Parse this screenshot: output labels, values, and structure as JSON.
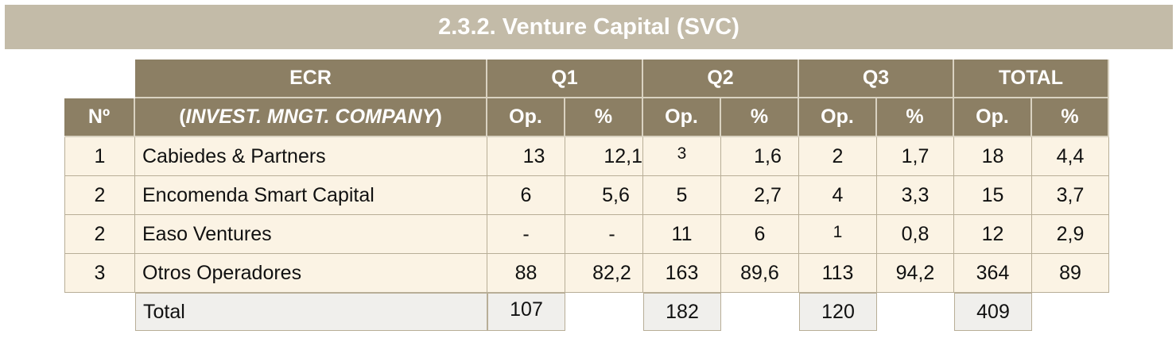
{
  "title": "2.3.2. Venture Capital (SVC)",
  "header": {
    "ecr": "ECR",
    "q1": "Q1",
    "q2": "Q2",
    "q3": "Q3",
    "total": "TOTAL",
    "no": "Nº",
    "company_open": "(",
    "company": "INVEST. MNGT. COMPANY",
    "company_close": ")",
    "op": "Op.",
    "pct": "%"
  },
  "rows": [
    {
      "no": "1",
      "name": "Cabiedes & Partners",
      "q1_op": "13",
      "q1_pct": "12,1",
      "q2_op": "3",
      "q2_pct": "1,6",
      "q3_op": "2",
      "q3_pct": "1,7",
      "t_op": "18",
      "t_pct": "4,4"
    },
    {
      "no": "2",
      "name": "Encomenda Smart Capital",
      "q1_op": "6",
      "q1_pct": "5,6",
      "q2_op": "5",
      "q2_pct": "2,7",
      "q3_op": "4",
      "q3_pct": "3,3",
      "t_op": "15",
      "t_pct": "3,7"
    },
    {
      "no": "2",
      "name": "Easo Ventures",
      "q1_op": "-",
      "q1_pct": "-",
      "q2_op": "11",
      "q2_pct": "6",
      "q3_op": "1",
      "q3_pct": "0,8",
      "t_op": "12",
      "t_pct": "2,9"
    },
    {
      "no": "3",
      "name": "Otros Operadores",
      "q1_op": "88",
      "q1_pct": "82,2",
      "q2_op": "163",
      "q2_pct": "89,6",
      "q3_op": "113",
      "q3_pct": "94,2",
      "t_op": "364",
      "t_pct": "89"
    }
  ],
  "totals": {
    "label": "Total",
    "q1": "107",
    "q2": "182",
    "q3": "120",
    "total": "409"
  }
}
